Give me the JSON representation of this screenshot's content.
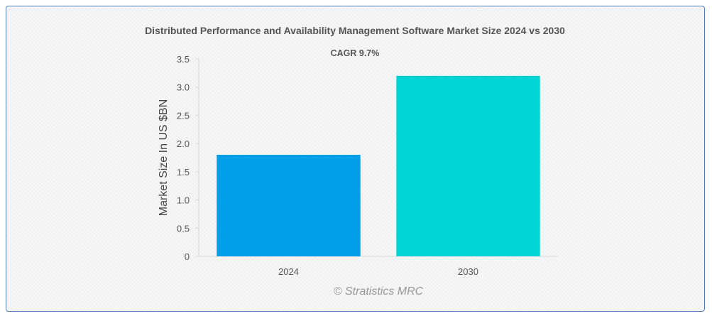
{
  "chart_data": {
    "type": "bar",
    "title": "Distributed Performance and Availability Management Software Market Size 2024 vs 2030",
    "subtitle": "CAGR 9.7%",
    "xlabel": "",
    "ylabel": "Market Size In US $BN",
    "categories": [
      "2024",
      "2030"
    ],
    "values": [
      1.8,
      3.2
    ],
    "colors": [
      "#039ee8",
      "#00d4d4"
    ],
    "ylim": [
      0,
      3.5
    ],
    "yticks": [
      0,
      0.5,
      1.0,
      1.5,
      2.0,
      2.5,
      3.0,
      3.5
    ],
    "ytick_labels": [
      "0",
      "0.5",
      "1.0",
      "1.5",
      "2.0",
      "2.5",
      "3.0",
      "3.5"
    ],
    "grid": false,
    "legend": "none"
  },
  "credit": "© Stratistics MRC"
}
